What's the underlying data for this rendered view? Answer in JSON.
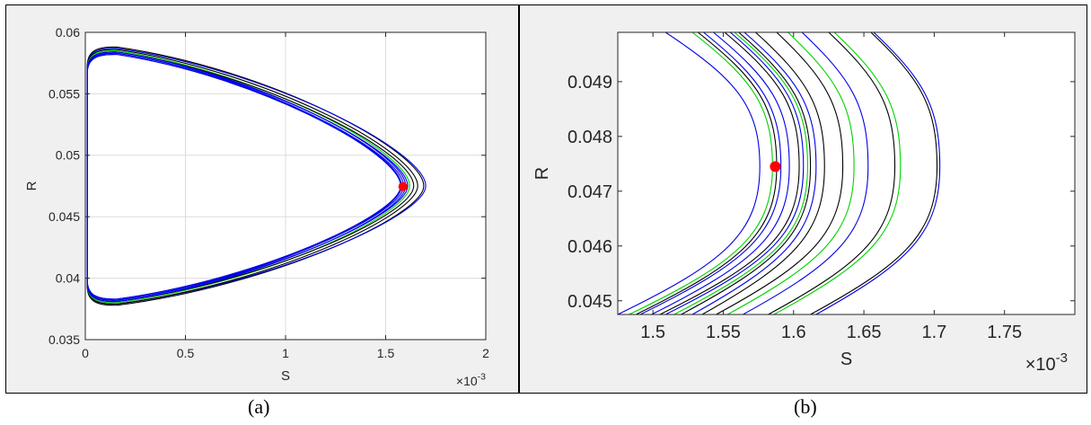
{
  "captions": [
    "(a)",
    "(b)"
  ],
  "colors": {
    "background": "#f0f0f0",
    "axes": "#ffffff",
    "grid": "#dcdcdc",
    "black": "#000000",
    "blue": "#0000e6",
    "green": "#00d200",
    "marker": "#ff0000"
  },
  "chart_data": [
    {
      "type": "line",
      "panel": "(a)",
      "xlabel": "S",
      "ylabel": "R",
      "x_multiplier_label": "×10",
      "x_multiplier_exp": "-3",
      "xlim": [
        0,
        2
      ],
      "ylim": [
        0.035,
        0.06
      ],
      "xticks": [
        0,
        0.5,
        1,
        1.5,
        2
      ],
      "xtick_labels": [
        "0",
        "0.5",
        "1",
        "1.5",
        "2"
      ],
      "yticks": [
        0.035,
        0.04,
        0.045,
        0.05,
        0.055,
        0.06
      ],
      "ytick_labels": [
        "0.035",
        "0.04",
        "0.045",
        "0.05",
        "0.055",
        "0.06"
      ],
      "grid": true,
      "curve_model": {
        "x_left": 0.01,
        "y_mid": 0.0475,
        "x_shoulder": 0.16
      },
      "series": [
        {
          "color": "black",
          "x_tip": 1.69,
          "y_top": 0.0588,
          "y_bottom": 0.0378
        },
        {
          "color": "blue",
          "x_tip": 1.7,
          "y_top": 0.0587,
          "y_bottom": 0.0379
        },
        {
          "color": "black",
          "x_tip": 1.66,
          "y_top": 0.0586,
          "y_bottom": 0.0379
        },
        {
          "color": "green",
          "x_tip": 1.62,
          "y_top": 0.0585,
          "y_bottom": 0.038
        },
        {
          "color": "black",
          "x_tip": 1.64,
          "y_top": 0.0584,
          "y_bottom": 0.0381
        },
        {
          "color": "blue",
          "x_tip": 1.61,
          "y_top": 0.0583,
          "y_bottom": 0.0382
        },
        {
          "color": "blue",
          "x_tip": 1.6,
          "y_top": 0.0584,
          "y_bottom": 0.0381
        },
        {
          "color": "blue",
          "x_tip": 1.59,
          "y_top": 0.0582,
          "y_bottom": 0.0383
        },
        {
          "color": "blue",
          "x_tip": 1.58,
          "y_top": 0.0583,
          "y_bottom": 0.0382
        },
        {
          "color": "blue",
          "x_tip": 1.575,
          "y_top": 0.0582,
          "y_bottom": 0.0383
        }
      ],
      "marker": {
        "x": 1.586,
        "y": 0.04745
      }
    },
    {
      "type": "line",
      "panel": "(b)",
      "xlabel": "S",
      "ylabel": "R",
      "x_multiplier_label": "×10",
      "x_multiplier_exp": "-3",
      "xlim": [
        1.475,
        1.8
      ],
      "ylim": [
        0.04475,
        0.0499
      ],
      "xticks": [
        1.5,
        1.55,
        1.6,
        1.65,
        1.7,
        1.75
      ],
      "xtick_labels": [
        "1.5",
        "1.55",
        "1.6",
        "1.65",
        "1.7",
        "1.75"
      ],
      "yticks": [
        0.045,
        0.046,
        0.047,
        0.048,
        0.049
      ],
      "ytick_labels": [
        "0.045",
        "0.046",
        "0.047",
        "0.048",
        "0.049"
      ],
      "grid": false,
      "curve_model": {
        "y_mid": 0.04745,
        "y_top": 0.0499,
        "y_bottom": 0.04475
      },
      "series": [
        {
          "color": "blue",
          "x_tip": 1.576,
          "x_top": 1.509,
          "x_bottom": 1.475
        },
        {
          "color": "green",
          "x_tip": 1.585,
          "x_top": 1.528,
          "x_bottom": 1.483
        },
        {
          "color": "black",
          "x_tip": 1.588,
          "x_top": 1.532,
          "x_bottom": 1.488
        },
        {
          "color": "blue",
          "x_tip": 1.591,
          "x_top": 1.536,
          "x_bottom": 1.491
        },
        {
          "color": "blue",
          "x_tip": 1.597,
          "x_top": 1.543,
          "x_bottom": 1.499
        },
        {
          "color": "black",
          "x_tip": 1.604,
          "x_top": 1.551,
          "x_bottom": 1.505
        },
        {
          "color": "blue",
          "x_tip": 1.607,
          "x_top": 1.555,
          "x_bottom": 1.509
        },
        {
          "color": "green",
          "x_tip": 1.61,
          "x_top": 1.558,
          "x_bottom": 1.515
        },
        {
          "color": "black",
          "x_tip": 1.612,
          "x_top": 1.561,
          "x_bottom": 1.52
        },
        {
          "color": "blue",
          "x_tip": 1.616,
          "x_top": 1.565,
          "x_bottom": 1.528
        },
        {
          "color": "black",
          "x_tip": 1.622,
          "x_top": 1.573,
          "x_bottom": 1.535
        },
        {
          "color": "black",
          "x_tip": 1.635,
          "x_top": 1.588,
          "x_bottom": 1.545
        },
        {
          "color": "green",
          "x_tip": 1.643,
          "x_top": 1.596,
          "x_bottom": 1.553
        },
        {
          "color": "blue",
          "x_tip": 1.653,
          "x_top": 1.606,
          "x_bottom": 1.564
        },
        {
          "color": "black",
          "x_tip": 1.672,
          "x_top": 1.625,
          "x_bottom": 1.582
        },
        {
          "color": "green",
          "x_tip": 1.676,
          "x_top": 1.629,
          "x_bottom": 1.586
        },
        {
          "color": "black",
          "x_tip": 1.702,
          "x_top": 1.655,
          "x_bottom": 1.612
        },
        {
          "color": "blue",
          "x_tip": 1.704,
          "x_top": 1.657,
          "x_bottom": 1.616
        }
      ],
      "marker": {
        "x": 1.587,
        "y": 0.04745
      }
    }
  ]
}
